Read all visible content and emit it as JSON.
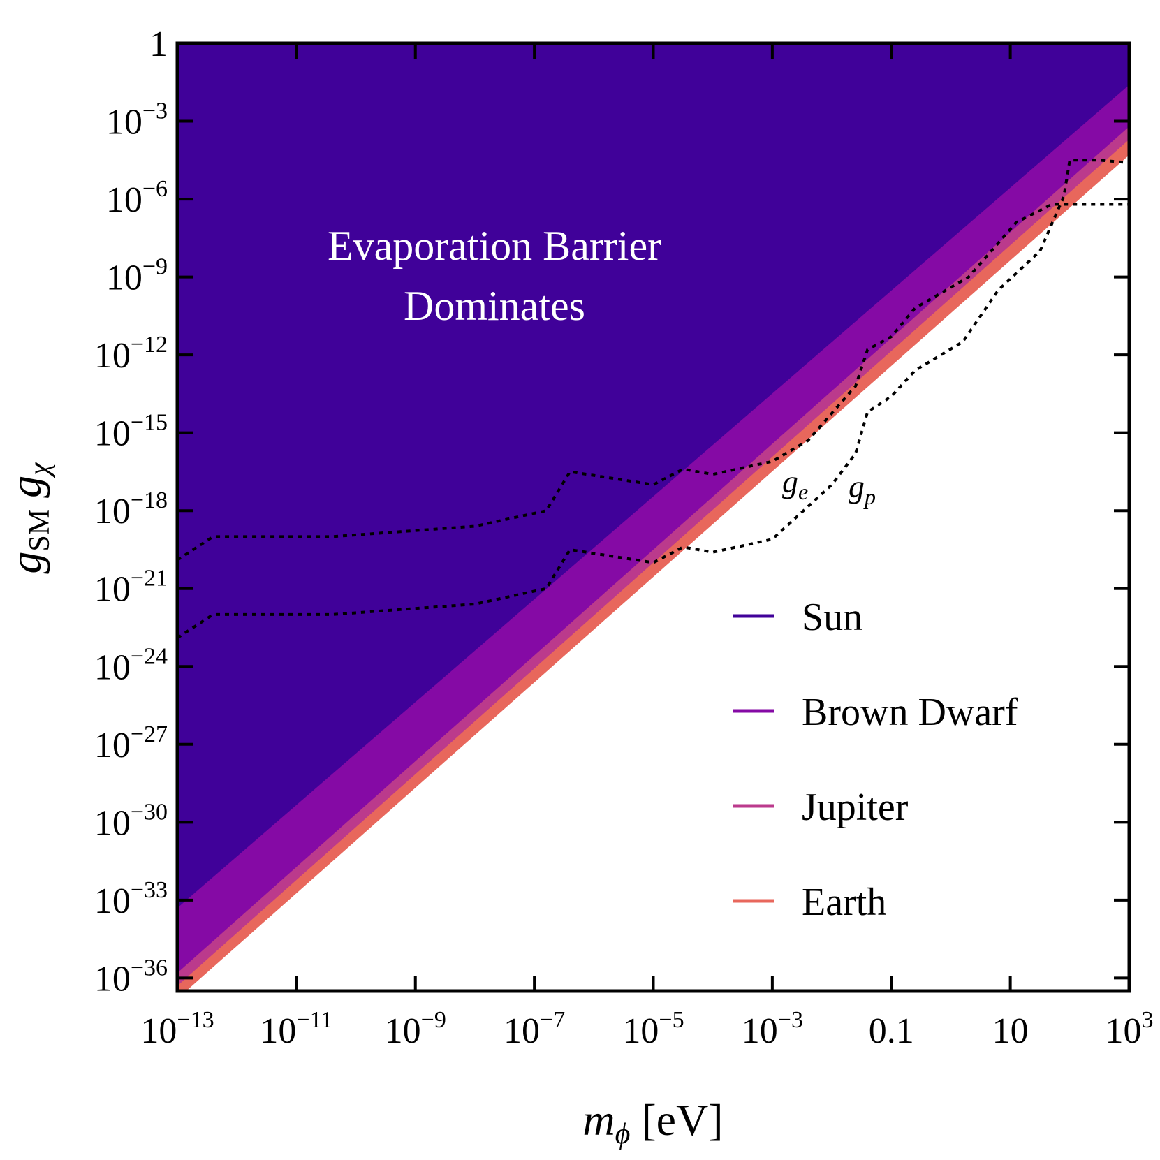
{
  "chart_data": {
    "type": "area",
    "title": "",
    "xlabel": {
      "main": "m",
      "sub": "ϕ",
      "unit": " [eV]"
    },
    "ylabel": {
      "g1": "g",
      "g1_sub": "SM",
      "g2": "g",
      "g2_sub": "χ"
    },
    "x_scale": "log",
    "y_scale": "log",
    "xlim_log10": [
      -13,
      3
    ],
    "ylim_log10": [
      -36.5,
      0
    ],
    "x_ticks": [
      {
        "log": -13,
        "base": "10",
        "exp": "−13"
      },
      {
        "log": -11,
        "base": "10",
        "exp": "−11"
      },
      {
        "log": -9,
        "base": "10",
        "exp": "−9"
      },
      {
        "log": -7,
        "base": "10",
        "exp": "−7"
      },
      {
        "log": -5,
        "base": "10",
        "exp": "−5"
      },
      {
        "log": -3,
        "base": "10",
        "exp": "−3"
      },
      {
        "log": -1,
        "base": "0.1",
        "exp": ""
      },
      {
        "log": 1,
        "base": "10",
        "exp": ""
      },
      {
        "log": 3,
        "base": "10",
        "exp": "3"
      }
    ],
    "y_ticks": [
      {
        "log": 0,
        "base": "1",
        "exp": ""
      },
      {
        "log": -3,
        "base": "10",
        "exp": "−3"
      },
      {
        "log": -6,
        "base": "10",
        "exp": "−6"
      },
      {
        "log": -9,
        "base": "10",
        "exp": "−9"
      },
      {
        "log": -12,
        "base": "10",
        "exp": "−12"
      },
      {
        "log": -15,
        "base": "10",
        "exp": "−15"
      },
      {
        "log": -18,
        "base": "10",
        "exp": "−18"
      },
      {
        "log": -21,
        "base": "10",
        "exp": "−21"
      },
      {
        "log": -24,
        "base": "10",
        "exp": "−24"
      },
      {
        "log": -27,
        "base": "10",
        "exp": "−27"
      },
      {
        "log": -30,
        "base": "10",
        "exp": "−30"
      },
      {
        "log": -33,
        "base": "10",
        "exp": "−33"
      },
      {
        "log": -36,
        "base": "10",
        "exp": "−36"
      }
    ],
    "bands": [
      {
        "name": "Earth",
        "color": "#e8675c",
        "boundary_log10": [
          [
            -13,
            -36.8
          ],
          [
            3,
            -4.3
          ]
        ]
      },
      {
        "name": "Jupiter",
        "color": "#bb3a8c",
        "boundary_log10": [
          [
            -13,
            -36.3
          ],
          [
            3,
            -3.7
          ]
        ]
      },
      {
        "name": "Brown Dwarf",
        "color": "#850aa5",
        "boundary_log10": [
          [
            -13,
            -35.8
          ],
          [
            3,
            -3.2
          ]
        ]
      },
      {
        "name": "Sun",
        "color": "#400199",
        "boundary_log10": [
          [
            -13,
            -33.3
          ],
          [
            3,
            -1.6
          ]
        ]
      }
    ],
    "series": [
      {
        "name": "g_e",
        "style": "dotted",
        "color": "#000000",
        "points_log10": [
          [
            -13,
            -19.9
          ],
          [
            -12.4,
            -19.0
          ],
          [
            -10.4,
            -19.0
          ],
          [
            -8.0,
            -18.6
          ],
          [
            -6.8,
            -18.0
          ],
          [
            -6.4,
            -16.5
          ],
          [
            -5.0,
            -17.0
          ],
          [
            -4.5,
            -16.4
          ],
          [
            -4.0,
            -16.6
          ],
          [
            -3.0,
            -16.1
          ],
          [
            -2.4,
            -15.3
          ],
          [
            -1.6,
            -13.2
          ],
          [
            -1.4,
            -11.8
          ],
          [
            -1.0,
            -11.3
          ],
          [
            -0.6,
            -10.2
          ],
          [
            0.3,
            -9.0
          ],
          [
            1.1,
            -6.9
          ],
          [
            1.7,
            -6.2
          ],
          [
            3.0,
            -6.2
          ]
        ]
      },
      {
        "name": "g_p",
        "style": "dotted",
        "color": "#000000",
        "points_log10": [
          [
            -13,
            -22.9
          ],
          [
            -12.4,
            -22.0
          ],
          [
            -10.4,
            -22.0
          ],
          [
            -8.0,
            -21.6
          ],
          [
            -6.8,
            -21.0
          ],
          [
            -6.4,
            -19.5
          ],
          [
            -5.0,
            -20.0
          ],
          [
            -4.5,
            -19.4
          ],
          [
            -4.0,
            -19.6
          ],
          [
            -3.0,
            -19.1
          ],
          [
            -2.0,
            -17.0
          ],
          [
            -1.6,
            -15.8
          ],
          [
            -1.4,
            -14.2
          ],
          [
            -1.0,
            -13.6
          ],
          [
            -0.6,
            -12.6
          ],
          [
            0.2,
            -11.5
          ],
          [
            0.8,
            -9.5
          ],
          [
            1.5,
            -8.0
          ],
          [
            1.9,
            -5.9
          ],
          [
            2.0,
            -4.5
          ],
          [
            2.5,
            -4.5
          ],
          [
            3.0,
            -4.6
          ]
        ]
      }
    ],
    "curve_labels": [
      {
        "series": "g_e",
        "base": "g",
        "sub": "e"
      },
      {
        "series": "g_p",
        "base": "g",
        "sub": "p"
      }
    ],
    "annotation_lines": [
      "Evaporation Barrier",
      "Dominates"
    ],
    "legend": {
      "placement": "lower-right",
      "entries": [
        {
          "label": "Sun",
          "color": "#400199"
        },
        {
          "label": "Brown Dwarf",
          "color": "#850aa5"
        },
        {
          "label": "Jupiter",
          "color": "#bb3a8c"
        },
        {
          "label": "Earth",
          "color": "#e8675c"
        }
      ]
    }
  }
}
